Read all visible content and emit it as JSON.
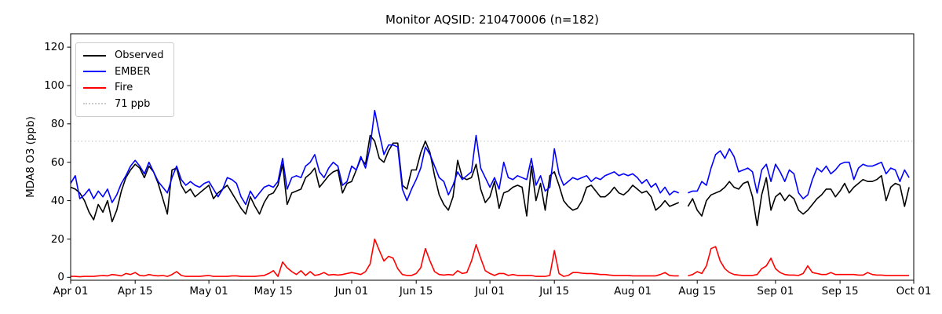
{
  "chart_data": {
    "type": "line",
    "title": "Monitor AQSID: 210470006 (n=182)",
    "ylabel": "MDA8 O3 (ppb)",
    "xlabel": "",
    "n_points": 182,
    "grid": false,
    "legend_position": "upper left",
    "xlim_days": [
      0,
      183
    ],
    "ylim": [
      -1.5,
      127
    ],
    "y_ticks": [
      0,
      20,
      40,
      60,
      80,
      100,
      120
    ],
    "x_ticks": [
      {
        "day": 0,
        "label": "Apr 01"
      },
      {
        "day": 14,
        "label": "Apr 15"
      },
      {
        "day": 30,
        "label": "May 01"
      },
      {
        "day": 44,
        "label": "May 15"
      },
      {
        "day": 61,
        "label": "Jun 01"
      },
      {
        "day": 75,
        "label": "Jun 15"
      },
      {
        "day": 91,
        "label": "Jul 01"
      },
      {
        "day": 105,
        "label": "Jul 15"
      },
      {
        "day": 122,
        "label": "Aug 01"
      },
      {
        "day": 136,
        "label": "Aug 15"
      },
      {
        "day": 153,
        "label": "Sep 01"
      },
      {
        "day": 167,
        "label": "Sep 15"
      },
      {
        "day": 183,
        "label": "Oct 01"
      }
    ],
    "threshold": {
      "value": 71,
      "label": "71 ppb",
      "color": "#cccccc",
      "style": "dotted"
    },
    "legend": [
      {
        "label": "Observed",
        "color": "#000000",
        "dash": "solid"
      },
      {
        "label": "EMBER",
        "color": "#0000ff",
        "dash": "solid"
      },
      {
        "label": "Fire",
        "color": "#ff0000",
        "dash": "solid"
      },
      {
        "label": "71 ppb",
        "color": "#cccccc",
        "dash": "dotted"
      }
    ],
    "series": [
      {
        "name": "Observed",
        "color": "#000000",
        "values": [
          47,
          46,
          44,
          40,
          34,
          30,
          38,
          34,
          40,
          29,
          35,
          45,
          52,
          56,
          59,
          57,
          52,
          58,
          55,
          49,
          41,
          33,
          56,
          57,
          48,
          44,
          46,
          42,
          44,
          46,
          48,
          41,
          44,
          46,
          48,
          44,
          40,
          36,
          33,
          42,
          37,
          33,
          39,
          43,
          44,
          48,
          59,
          38,
          44,
          45,
          46,
          52,
          54,
          57,
          47,
          50,
          53,
          55,
          56,
          44,
          49,
          50,
          56,
          62,
          59,
          74,
          71,
          62,
          60,
          66,
          70,
          70,
          48,
          46,
          56,
          56,
          65,
          71,
          65,
          53,
          43,
          38,
          35,
          42,
          61,
          52,
          51,
          52,
          59,
          46,
          39,
          42,
          50,
          36,
          44,
          45,
          47,
          48,
          47,
          32,
          58,
          40,
          49,
          35,
          53,
          55,
          48,
          40,
          37,
          35,
          36,
          40,
          47,
          48,
          45,
          42,
          42,
          44,
          47,
          44,
          43,
          45,
          48,
          46,
          44,
          45,
          42,
          35,
          37,
          40,
          37,
          38,
          39,
          null,
          37,
          41,
          35,
          32,
          40,
          43,
          44,
          45,
          47,
          50,
          47,
          46,
          49,
          50,
          42,
          27,
          43,
          52,
          35,
          42,
          44,
          40,
          43,
          41,
          35,
          33,
          35,
          38,
          41,
          43,
          46,
          46,
          42,
          45,
          49,
          44,
          47,
          49,
          51,
          50,
          50,
          51,
          53,
          40,
          47,
          49,
          48,
          37,
          47
        ]
      },
      {
        "name": "EMBER",
        "color": "#0000ff",
        "values": [
          49,
          53,
          41,
          43,
          46,
          41,
          45,
          42,
          46,
          39,
          43,
          49,
          53,
          58,
          61,
          58,
          54,
          60,
          55,
          50,
          47,
          44,
          52,
          58,
          51,
          48,
          50,
          48,
          47,
          49,
          50,
          46,
          42,
          46,
          52,
          51,
          49,
          42,
          38,
          45,
          41,
          44,
          47,
          48,
          47,
          50,
          62,
          46,
          52,
          53,
          52,
          58,
          60,
          64,
          55,
          52,
          57,
          60,
          58,
          48,
          50,
          58,
          56,
          63,
          57,
          68,
          87,
          75,
          64,
          69,
          69,
          68,
          46,
          40,
          46,
          51,
          57,
          68,
          64,
          58,
          52,
          50,
          43,
          48,
          55,
          51,
          53,
          55,
          74,
          57,
          52,
          47,
          52,
          46,
          60,
          52,
          51,
          53,
          52,
          51,
          62,
          48,
          53,
          45,
          47,
          67,
          54,
          48,
          50,
          52,
          51,
          52,
          53,
          50,
          52,
          51,
          53,
          54,
          55,
          53,
          54,
          53,
          54,
          52,
          49,
          51,
          47,
          49,
          44,
          47,
          43,
          45,
          44,
          null,
          44,
          45,
          45,
          50,
          48,
          57,
          64,
          66,
          62,
          67,
          63,
          55,
          56,
          57,
          55,
          44,
          56,
          59,
          50,
          59,
          55,
          50,
          56,
          54,
          44,
          41,
          43,
          51,
          57,
          55,
          58,
          54,
          56,
          59,
          60,
          60,
          51,
          57,
          59,
          58,
          58,
          59,
          60,
          54,
          57,
          56,
          50,
          56,
          52
        ]
      },
      {
        "name": "Fire",
        "color": "#ff0000",
        "values": [
          0.5,
          0.5,
          0.3,
          0.5,
          0.5,
          0.5,
          0.8,
          1,
          0.8,
          1.5,
          1.2,
          0.8,
          2,
          1.5,
          2.5,
          1,
          0.8,
          1.5,
          1,
          0.8,
          1,
          0.5,
          1.5,
          3,
          1,
          0.5,
          0.5,
          0.5,
          0.5,
          0.8,
          1,
          0.5,
          0.5,
          0.5,
          0.5,
          0.8,
          0.8,
          0.5,
          0.5,
          0.5,
          0.5,
          0.8,
          1,
          2,
          3.5,
          0.5,
          8,
          5,
          3,
          1.5,
          3.5,
          1,
          3,
          1,
          1.5,
          2.5,
          1.2,
          1.5,
          1.2,
          1.5,
          2,
          2.5,
          2,
          1.5,
          3,
          7,
          20,
          14,
          8.5,
          11,
          10,
          4.5,
          1.5,
          1,
          1,
          2,
          5,
          15,
          8.5,
          3,
          1.5,
          1.2,
          1.5,
          1.2,
          3.5,
          2,
          2.5,
          8.5,
          17,
          10,
          3.5,
          2,
          1,
          2,
          2,
          1,
          1.5,
          1,
          1,
          1,
          1,
          0.5,
          0.5,
          0.5,
          1,
          14,
          2,
          0.5,
          1,
          2.5,
          2.5,
          2.2,
          2,
          2,
          1.8,
          1.5,
          1.5,
          1.2,
          1,
          1,
          1,
          1,
          0.8,
          0.8,
          0.8,
          0.8,
          0.8,
          0.8,
          1.5,
          2.5,
          1,
          0.8,
          0.8,
          null,
          0.8,
          1.5,
          3,
          2,
          6,
          15,
          16,
          8.5,
          4.5,
          2.5,
          1.5,
          1.2,
          1,
          1,
          1,
          1.5,
          4.5,
          6,
          10,
          4.5,
          2.5,
          1.5,
          1.2,
          1.2,
          1,
          2,
          6,
          2.5,
          2,
          1.5,
          1.5,
          2.5,
          1.5,
          1.5,
          1.5,
          1.5,
          1.5,
          1.2,
          1.2,
          2.5,
          1.5,
          1.2,
          1.2,
          1,
          1,
          1,
          1,
          1,
          1
        ]
      }
    ]
  }
}
